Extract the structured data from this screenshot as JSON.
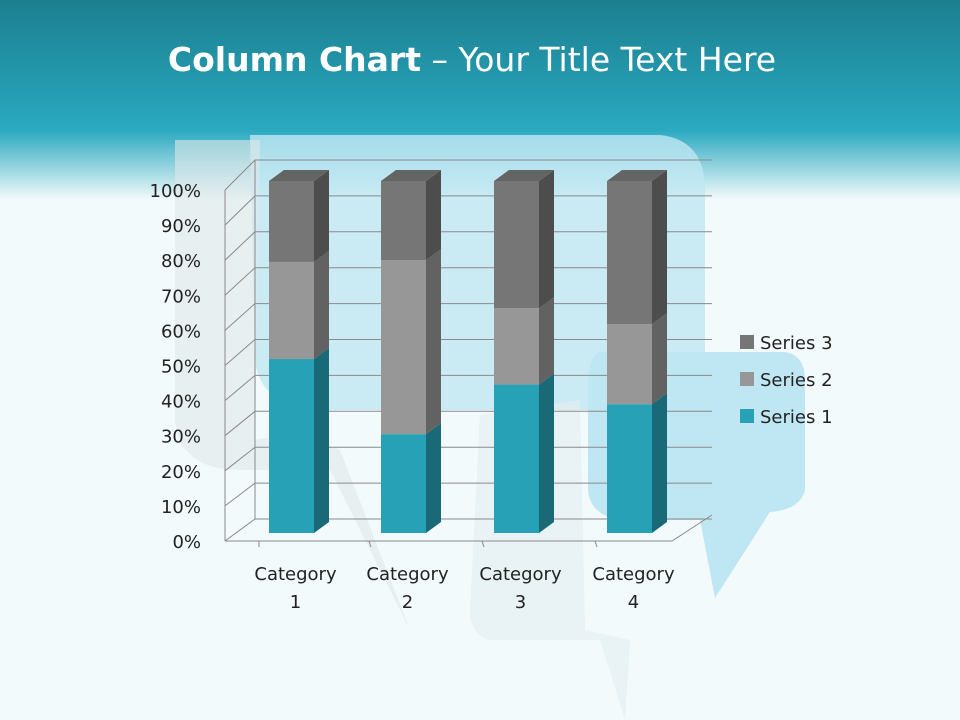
{
  "slide": {
    "title_bold": "Column Chart",
    "title_rest": " – Your Title Text Here"
  },
  "chart_data": {
    "type": "bar",
    "subtype": "3d-100%-stacked-column",
    "categories": [
      "Category 1",
      "Category 2",
      "Category 3",
      "Category 4"
    ],
    "category_labels": [
      [
        "Category",
        "1"
      ],
      [
        "Category",
        "2"
      ],
      [
        "Category",
        "3"
      ],
      [
        "Category",
        "4"
      ]
    ],
    "series": [
      {
        "name": "Series 1",
        "values": [
          4.3,
          2.5,
          3.5,
          4.5
        ],
        "color": "#27a1b6"
      },
      {
        "name": "Series 2",
        "values": [
          2.4,
          4.4,
          1.8,
          2.8
        ],
        "color": "#979797"
      },
      {
        "name": "Series 3",
        "values": [
          2,
          2,
          3,
          5
        ],
        "color": "#767676"
      }
    ],
    "ytick_labels": [
      "0%",
      "10%",
      "20%",
      "30%",
      "40%",
      "50%",
      "60%",
      "70%",
      "80%",
      "90%",
      "100%"
    ],
    "ylim": [
      0,
      100
    ],
    "grid": true,
    "legend": "right"
  }
}
